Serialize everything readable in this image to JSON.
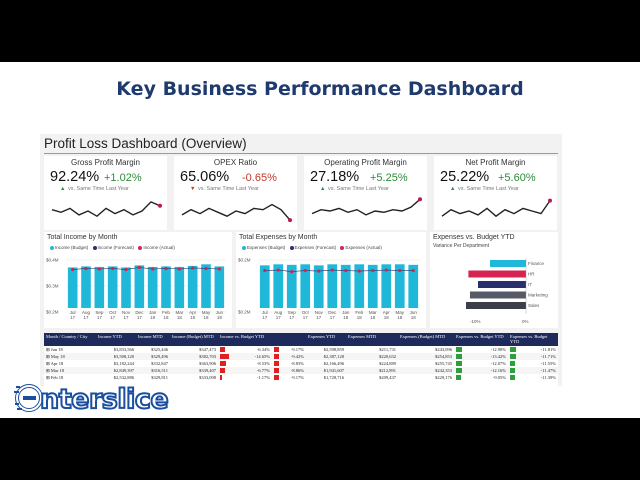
{
  "headline": "Key Business Performance Dashboard",
  "dashboard_title": "Profit Loss Dashboard (Overview)",
  "kpis": [
    {
      "name": "Gross Profit Margin",
      "value": "92.24%",
      "delta": "+1.02%",
      "direction": "up",
      "sub": "vs. Same Time Last Year",
      "spark": [
        0.55,
        0.45,
        0.6,
        0.35,
        0.5,
        0.3,
        0.6,
        0.4,
        0.55,
        0.35,
        0.5,
        0.85,
        0.7
      ]
    },
    {
      "name": "OPEX Ratio",
      "value": "65.06%",
      "delta": "-0.65%",
      "direction": "down",
      "sub": "vs. Same Time Last Year",
      "spark": [
        0.35,
        0.55,
        0.4,
        0.6,
        0.45,
        0.3,
        0.5,
        0.4,
        0.6,
        0.55,
        0.75,
        0.55,
        0.15
      ]
    },
    {
      "name": "Operating Profit Margin",
      "value": "27.18%",
      "delta": "+5.25%",
      "direction": "up",
      "sub": "vs. Same Time Last Year",
      "spark": [
        0.4,
        0.55,
        0.5,
        0.6,
        0.45,
        0.55,
        0.35,
        0.5,
        0.45,
        0.55,
        0.5,
        0.65,
        0.95
      ]
    },
    {
      "name": "Net Profit Margin",
      "value": "25.22%",
      "delta": "+5.60%",
      "direction": "up",
      "sub": "vs. Same Time Last Year",
      "spark": [
        0.3,
        0.55,
        0.4,
        0.5,
        0.35,
        0.6,
        0.3,
        0.55,
        0.4,
        0.6,
        0.5,
        0.4,
        0.9
      ]
    }
  ],
  "income_chart": {
    "title": "Total Income by Month",
    "legend": [
      "Income (Budget)",
      "Income (Forecast)",
      "Income (Actual)"
    ],
    "y_ticks": [
      "$0.4M",
      "$0.3M",
      "$0.2M"
    ],
    "months": [
      "Jul 17",
      "Aug 17",
      "Sep 17",
      "Oct 17",
      "Nov 17",
      "Dec 17",
      "Jan 18",
      "Feb 18",
      "Mar 18",
      "Apr 18",
      "May 18",
      "Jun 18"
    ],
    "bars": [
      0.78,
      0.8,
      0.79,
      0.8,
      0.78,
      0.82,
      0.79,
      0.8,
      0.79,
      0.81,
      0.84,
      0.8
    ],
    "actual": [
      0.74,
      0.76,
      0.75,
      0.76,
      0.74,
      0.78,
      0.75,
      0.76,
      0.75,
      0.77,
      0.76,
      0.75
    ]
  },
  "expense_chart": {
    "title": "Total Expenses by Month",
    "legend": [
      "Expenses (Budget)",
      "Expenses (Forecast)",
      "Expenses (Actual)"
    ],
    "y_ticks": [
      "$0.2M",
      "$0.2M"
    ],
    "months": [
      "Jul 17",
      "Aug 17",
      "Sep 17",
      "Oct 17",
      "Nov 17",
      "Dec 17",
      "Jan 18",
      "Feb 18",
      "Mar 18",
      "Apr 18",
      "May 18",
      "Jun 18"
    ],
    "bars": [
      0.82,
      0.84,
      0.83,
      0.84,
      0.82,
      0.84,
      0.83,
      0.84,
      0.83,
      0.84,
      0.84,
      0.83
    ],
    "actual": [
      0.72,
      0.73,
      0.7,
      0.72,
      0.71,
      0.73,
      0.72,
      0.71,
      0.72,
      0.73,
      0.72,
      0.72
    ]
  },
  "budget_chart": {
    "title": "Expenses vs. Budget YTD",
    "subtitle": "Variance Per Department",
    "departments": [
      {
        "name": "Finance",
        "value": -0.45,
        "color": "#1fb8d8"
      },
      {
        "name": "HR",
        "value": -0.72,
        "color": "#d62450"
      },
      {
        "name": "IT",
        "value": -0.6,
        "color": "#2b2f6b"
      },
      {
        "name": "Marketing",
        "value": -0.7,
        "color": "#555a66"
      },
      {
        "name": "Sales",
        "value": -0.75,
        "color": "#3a3f48"
      }
    ],
    "x_ticks": [
      "-10%",
      "0%"
    ]
  },
  "table": {
    "headers": [
      "Month / Country / City",
      "Income YTD",
      "Income MTD",
      "Income (Budget) MTD",
      "Income vs. Budget YTD",
      "Expenses YTD",
      "Expenses MTD",
      "Expenses (Budget) MTD",
      "Expenses vs. Budget YTD",
      "Expenses vs. Budget YTD"
    ],
    "rows": [
      {
        "month": "Jun 18",
        "c1": "$3,833,566",
        "c2": "$325,446",
        "c3": "$347,473",
        "c4": "-6.34%",
        "c4v": 0.45,
        "c5": "-9.17%",
        "c5v": 0.5,
        "c6": "$2,598,859",
        "c7": "$211,731",
        "c8": "$243,096",
        "c9": "-12.90%",
        "c9v": 0.6,
        "c10": "-11.81%",
        "c10v": 0.55
      },
      {
        "month": "May 18",
        "c1": "$3,508,120",
        "c2": "$329,496",
        "c3": "$382,703",
        "c4": "-14.65%",
        "c4v": 0.9,
        "c5": "-9.42%",
        "c5v": 0.52,
        "c6": "$2,387,128",
        "c7": "$220,632",
        "c8": "$254,853",
        "c9": "-13.42%",
        "c9v": 0.62,
        "c10": "-11.71%",
        "c10v": 0.55
      },
      {
        "month": "Apr 18",
        "c1": "$3,182,244",
        "c2": "$332,847",
        "c3": "$363,906",
        "c4": "-8.53%",
        "c4v": 0.55,
        "c5": "-8.83%",
        "c5v": 0.5,
        "c6": "$2,166,496",
        "c7": "$224,889",
        "c8": "$255,745",
        "c9": "-12.07%",
        "c9v": 0.58,
        "c10": "-11.55%",
        "c10v": 0.54
      },
      {
        "month": "Mar 18",
        "c1": "$2,849,397",
        "c2": "$316,511",
        "c3": "$339,407",
        "c4": "-6.77%",
        "c4v": 0.45,
        "c5": "-8.86%",
        "c5v": 0.5,
        "c6": "$1,941,607",
        "c7": "$212,891",
        "c8": "$242,353",
        "c9": "-12.16%",
        "c9v": 0.58,
        "c10": "-11.47%",
        "c10v": 0.54
      },
      {
        "month": "Feb 18",
        "c1": "$2,532,886",
        "c2": "$329,811",
        "c3": "$333,098",
        "c4": "-1.17%",
        "c4v": 0.15,
        "c5": "-9.17%",
        "c5v": 0.5,
        "c6": "$1,728,716",
        "c7": "$209,437",
        "c8": "$229,176",
        "c9": "-9.05%",
        "c9v": 0.45,
        "c10": "-11.39%",
        "c10v": 0.54
      }
    ]
  },
  "logo_text": "nterslice"
}
